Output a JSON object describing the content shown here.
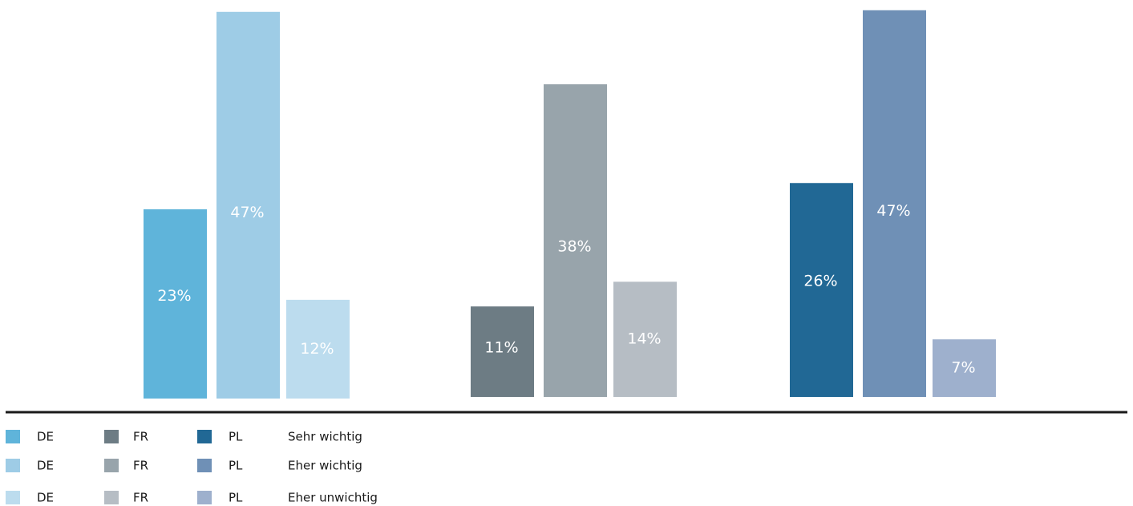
{
  "chart_data": {
    "type": "bar",
    "groups": [
      "DE",
      "FR",
      "PL"
    ],
    "series": [
      {
        "name": "Sehr wichtig",
        "values": [
          23,
          11,
          26
        ],
        "labels": [
          "23%",
          "11%",
          "26%"
        ]
      },
      {
        "name": "Eher wichtig",
        "values": [
          47,
          38,
          47
        ],
        "labels": [
          "47%",
          "38%",
          "47%"
        ]
      },
      {
        "name": "Eher unwichtig",
        "values": [
          12,
          14,
          7
        ],
        "labels": [
          "12%",
          "14%",
          "7%"
        ]
      }
    ],
    "colors": {
      "DE": [
        "#5fb4da",
        "#9ecce6",
        "#bcdcee"
      ],
      "FR": [
        "#6d7c84",
        "#98a4ab",
        "#b6bdc4"
      ],
      "PL": [
        "#216895",
        "#6f90b6",
        "#9eb0cd"
      ]
    },
    "axis_color": "#1a1a1a",
    "legend": {
      "placement": "bottom",
      "country_labels": [
        "DE",
        "FR",
        "PL"
      ],
      "category_labels": [
        "Sehr wichtig",
        "Eher wichtig",
        "Eher unwichtig"
      ]
    }
  }
}
